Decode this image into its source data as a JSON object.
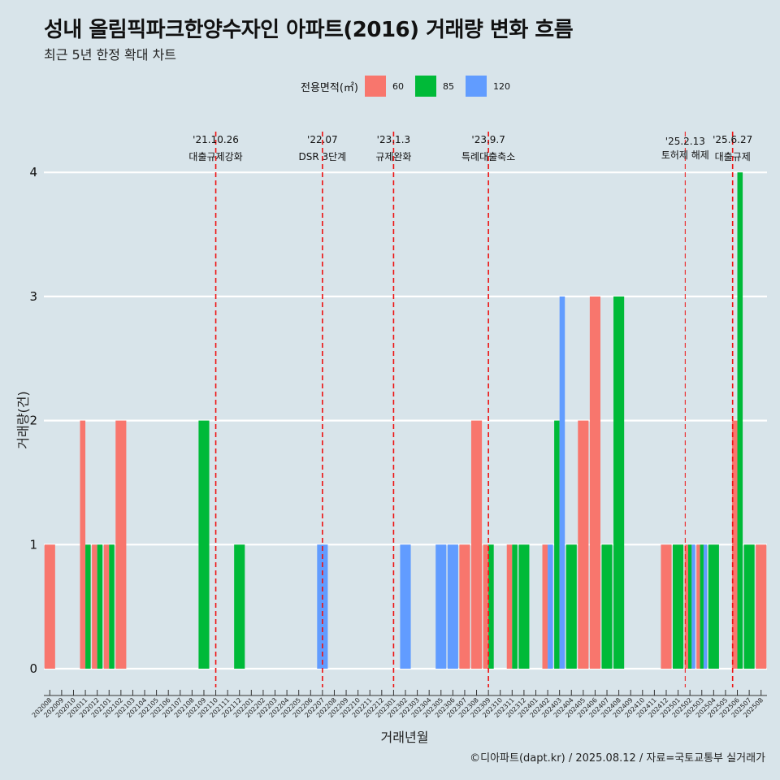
{
  "title": "성내 올림픽파크한양수자인 아파트(2016) 거래량 변화 흐름",
  "subtitle": "최근 5년 한정 확대 차트",
  "caption": "©디아파트(dapt.kr) / 2025.08.12 / 자료=국토교통부 실거래가",
  "legend": {
    "title": "전용면적(㎡)",
    "items": [
      {
        "label": "60",
        "color": "#f8766d"
      },
      {
        "label": "85",
        "color": "#00ba38"
      },
      {
        "label": "120",
        "color": "#619cff"
      }
    ]
  },
  "chart_data": {
    "type": "bar",
    "xlabel": "거래년월",
    "ylabel": "거래량(건)",
    "ylim": [
      0,
      4
    ],
    "yticks": [
      0,
      1,
      2,
      3,
      4
    ],
    "grid": true,
    "legend_position": "top",
    "categories": [
      "202008",
      "202009",
      "202010",
      "202011",
      "202012",
      "202101",
      "202102",
      "202103",
      "202104",
      "202105",
      "202106",
      "202107",
      "202108",
      "202109",
      "202110",
      "202111",
      "202112",
      "202201",
      "202202",
      "202203",
      "202204",
      "202205",
      "202206",
      "202207",
      "202208",
      "202209",
      "202210",
      "202211",
      "202212",
      "202301",
      "202302",
      "202303",
      "202304",
      "202305",
      "202306",
      "202307",
      "202308",
      "202309",
      "202310",
      "202311",
      "202312",
      "202401",
      "202402",
      "202403",
      "202404",
      "202405",
      "202406",
      "202407",
      "202408",
      "202409",
      "202410",
      "202411",
      "202412",
      "202501",
      "202502",
      "202503",
      "202504",
      "202505",
      "202506",
      "202507",
      "202508"
    ],
    "series": [
      {
        "name": "60",
        "color": "#f8766d",
        "points": [
          [
            "202008",
            1
          ],
          [
            "202011",
            2
          ],
          [
            "202012",
            1
          ],
          [
            "202101",
            1
          ],
          [
            "202102",
            2
          ],
          [
            "202307",
            1
          ],
          [
            "202308",
            2
          ],
          [
            "202309",
            1
          ],
          [
            "202311",
            1
          ],
          [
            "202402",
            1
          ],
          [
            "202405",
            2
          ],
          [
            "202406",
            3
          ],
          [
            "202412",
            1
          ],
          [
            "202502",
            1
          ],
          [
            "202503",
            1
          ],
          [
            "202506",
            2
          ],
          [
            "202508",
            1
          ]
        ]
      },
      {
        "name": "85",
        "color": "#00ba38",
        "points": [
          [
            "202011",
            1
          ],
          [
            "202012",
            1
          ],
          [
            "202101",
            1
          ],
          [
            "202109",
            2
          ],
          [
            "202112",
            1
          ],
          [
            "202309",
            1
          ],
          [
            "202311",
            1
          ],
          [
            "202312",
            1
          ],
          [
            "202403",
            2
          ],
          [
            "202404",
            1
          ],
          [
            "202407",
            1
          ],
          [
            "202408",
            3
          ],
          [
            "202501",
            1
          ],
          [
            "202502",
            1
          ],
          [
            "202503",
            1
          ],
          [
            "202504",
            1
          ],
          [
            "202506",
            4
          ],
          [
            "202507",
            1
          ]
        ]
      },
      {
        "name": "120",
        "color": "#619cff",
        "points": [
          [
            "202207",
            1
          ],
          [
            "202302",
            1
          ],
          [
            "202305",
            1
          ],
          [
            "202306",
            1
          ],
          [
            "202402",
            1
          ],
          [
            "202403",
            3
          ],
          [
            "202502",
            1
          ],
          [
            "202503",
            1
          ]
        ]
      }
    ],
    "events": [
      {
        "x": 14.5,
        "date": "'21.10.26",
        "label": "대출규제강화"
      },
      {
        "x": 23.5,
        "date": "'22.07",
        "label": "DSR 3단계"
      },
      {
        "x": 29.5,
        "date": "'23.1.3",
        "label": "규제완화"
      },
      {
        "x": 37.5,
        "date": "'23.9.7",
        "label": "특례대출축소"
      },
      {
        "x": 54.1,
        "date": "'25.2.13",
        "label": "토허제 해제"
      },
      {
        "x": 58.1,
        "date": "'25.6.27",
        "label": "대출규제"
      }
    ]
  }
}
